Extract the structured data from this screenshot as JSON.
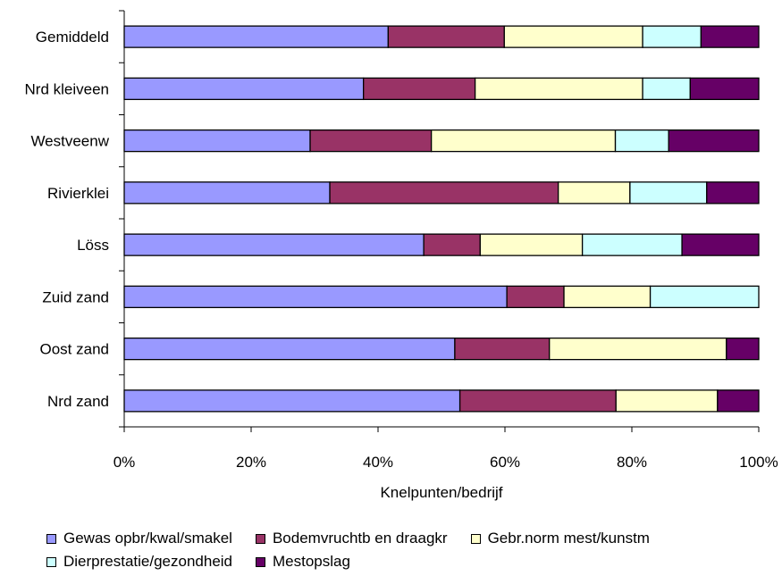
{
  "chart_data": {
    "type": "bar",
    "orientation": "horizontal",
    "stacked": "percent",
    "title": "",
    "xlabel": "Knelpunten/bedrijf",
    "ylabel": "",
    "xlim": [
      0,
      100
    ],
    "xticks": [
      "0%",
      "20%",
      "40%",
      "60%",
      "80%",
      "100%"
    ],
    "grid": false,
    "legend_position": "bottom",
    "categories": [
      "Gemiddeld",
      "Nrd kleiveen",
      "Westveenw",
      "Rivierklei",
      "Löss",
      "Zuid zand",
      "Oost zand",
      "Nrd zand"
    ],
    "series": [
      {
        "name": "Gewas opbr/kwal/smakel",
        "color": "#9999ff",
        "values": [
          41.6,
          37.7,
          29.3,
          32.4,
          47.2,
          60.3,
          52.1,
          52.9
        ]
      },
      {
        "name": "Bodemvruchtb en draagkr",
        "color": "#993366",
        "values": [
          18.3,
          17.6,
          19.1,
          36.0,
          8.9,
          9.0,
          14.9,
          24.6
        ]
      },
      {
        "name": "Gebr.norm mest/kunstm",
        "color": "#ffffcc",
        "values": [
          21.8,
          26.4,
          29.0,
          11.3,
          16.1,
          13.6,
          27.9,
          16.0
        ]
      },
      {
        "name": "Dierprestatie/gezondheid",
        "color": "#ccffff",
        "values": [
          9.2,
          7.5,
          8.4,
          12.1,
          15.7,
          17.1,
          0.0,
          0.0
        ]
      },
      {
        "name": "Mestopslag",
        "color": "#660066",
        "values": [
          9.1,
          10.8,
          14.2,
          8.2,
          12.1,
          0.0,
          5.1,
          6.5
        ]
      }
    ]
  }
}
